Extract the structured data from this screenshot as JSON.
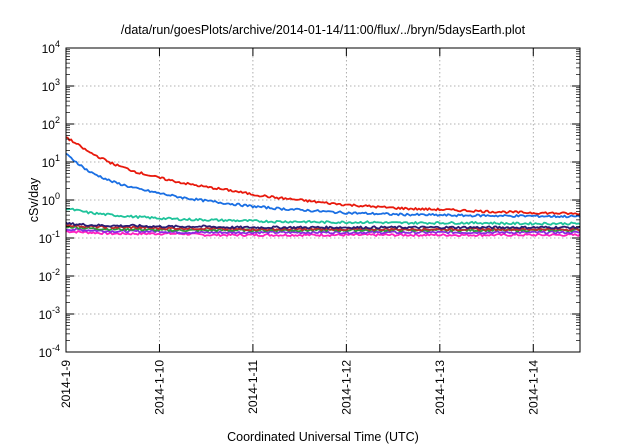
{
  "chart_data": {
    "type": "line",
    "title": "/data/run/goesPlots/archive/2014-01-14/11:00/flux/../bryn/5daysEarth.plot",
    "xlabel": "Coordinated Universal Time (UTC)",
    "ylabel": "cSv/day",
    "x_tick_labels": [
      "2014-1-9",
      "2014-1-10",
      "2014-1-11",
      "2014-1-12",
      "2014-1-13",
      "2014-1-14"
    ],
    "y_tick_labels": [
      {
        "base": "10",
        "exp": "4"
      },
      {
        "base": "10",
        "exp": "3"
      },
      {
        "base": "10",
        "exp": "2"
      },
      {
        "base": "10",
        "exp": "1"
      },
      {
        "base": "10",
        "exp": "0"
      },
      {
        "base": "10",
        "exp": "-1"
      },
      {
        "base": "10",
        "exp": "-2"
      },
      {
        "base": "10",
        "exp": "-3"
      },
      {
        "base": "10",
        "exp": "-4"
      }
    ],
    "x_days": [
      0,
      0.25,
      0.5,
      0.75,
      1,
      1.25,
      1.5,
      1.75,
      2,
      2.25,
      2.5,
      2.75,
      3,
      3.25,
      3.5,
      3.75,
      4,
      4.25,
      4.5,
      4.75,
      5,
      5.25,
      5.5
    ],
    "xlim_days": [
      0,
      5.5
    ],
    "ylim": [
      0.0001,
      10000
    ],
    "yscale": "log",
    "grid": true,
    "series": [
      {
        "color": "#e8190c",
        "values": [
          45,
          18,
          9,
          5.5,
          3.8,
          2.8,
          2.2,
          1.8,
          1.4,
          1.15,
          1.0,
          0.85,
          0.75,
          0.68,
          0.62,
          0.58,
          0.56,
          0.53,
          0.5,
          0.48,
          0.46,
          0.45,
          0.43
        ]
      },
      {
        "color": "#1a6fe3",
        "values": [
          16,
          5.5,
          3.0,
          2.0,
          1.5,
          1.15,
          0.95,
          0.8,
          0.68,
          0.6,
          0.55,
          0.5,
          0.46,
          0.44,
          0.42,
          0.41,
          0.4,
          0.39,
          0.39,
          0.38,
          0.38,
          0.37,
          0.37
        ]
      },
      {
        "color": "#1fc39b",
        "values": [
          0.6,
          0.46,
          0.4,
          0.36,
          0.33,
          0.31,
          0.3,
          0.29,
          0.28,
          0.27,
          0.27,
          0.26,
          0.26,
          0.26,
          0.25,
          0.25,
          0.25,
          0.25,
          0.25,
          0.24,
          0.24,
          0.24,
          0.24
        ]
      },
      {
        "color": "#2b1d73",
        "values": [
          0.24,
          0.22,
          0.21,
          0.21,
          0.2,
          0.2,
          0.2,
          0.19,
          0.19,
          0.19,
          0.19,
          0.19,
          0.19,
          0.19,
          0.19,
          0.19,
          0.19,
          0.19,
          0.19,
          0.19,
          0.19,
          0.19,
          0.19
        ]
      },
      {
        "color": "#c02a2a",
        "values": [
          0.22,
          0.2,
          0.19,
          0.19,
          0.18,
          0.18,
          0.18,
          0.17,
          0.17,
          0.17,
          0.17,
          0.17,
          0.17,
          0.17,
          0.17,
          0.17,
          0.17,
          0.17,
          0.17,
          0.17,
          0.17,
          0.17,
          0.17
        ]
      },
      {
        "color": "#2d9c3c",
        "values": [
          0.2,
          0.18,
          0.17,
          0.17,
          0.16,
          0.16,
          0.16,
          0.16,
          0.16,
          0.16,
          0.16,
          0.16,
          0.16,
          0.16,
          0.16,
          0.16,
          0.16,
          0.16,
          0.16,
          0.16,
          0.16,
          0.16,
          0.16
        ]
      },
      {
        "color": "#8a2be2",
        "values": [
          0.17,
          0.16,
          0.15,
          0.15,
          0.15,
          0.14,
          0.14,
          0.14,
          0.14,
          0.14,
          0.14,
          0.14,
          0.14,
          0.14,
          0.14,
          0.14,
          0.14,
          0.14,
          0.14,
          0.14,
          0.14,
          0.14,
          0.14
        ]
      },
      {
        "color": "#ff1fbf",
        "values": [
          0.15,
          0.14,
          0.13,
          0.13,
          0.13,
          0.13,
          0.12,
          0.12,
          0.12,
          0.12,
          0.12,
          0.12,
          0.12,
          0.12,
          0.12,
          0.12,
          0.12,
          0.12,
          0.12,
          0.12,
          0.12,
          0.12,
          0.12
        ]
      }
    ]
  }
}
